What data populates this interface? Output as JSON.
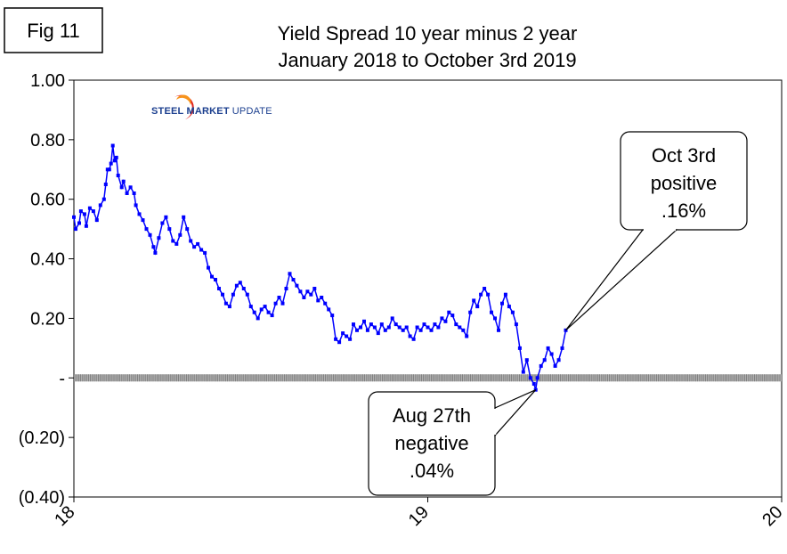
{
  "fig_label": "Fig 11",
  "logo": {
    "text": "STEEL MARKET UPDATE",
    "text_strong": "STEEL MARKET",
    "text_light": "UPDATE"
  },
  "chart_data": {
    "type": "line",
    "title": "Yield Spread 10 year minus 2 year",
    "subtitle": "January 2018 to October 3rd 2019",
    "xlabel": "",
    "ylabel": "",
    "x_ticks": [
      {
        "value": 18,
        "label": "18"
      },
      {
        "value": 19,
        "label": "19"
      },
      {
        "value": 20,
        "label": "20"
      }
    ],
    "xlim": [
      18,
      20
    ],
    "y_ticks": [
      {
        "value": 1.0,
        "label": "1.00"
      },
      {
        "value": 0.8,
        "label": "0.80"
      },
      {
        "value": 0.6,
        "label": "0.60"
      },
      {
        "value": 0.4,
        "label": "0.40"
      },
      {
        "value": 0.2,
        "label": "0.20"
      },
      {
        "value": 0.0,
        "label": "-"
      },
      {
        "value": -0.2,
        "label": "(0.20)"
      },
      {
        "value": -0.4,
        "label": "(0.40)"
      }
    ],
    "ylim": [
      -0.4,
      1.0
    ],
    "grid": false,
    "series": [
      {
        "name": "",
        "color": "#0000ff",
        "points": [
          [
            18.0,
            0.54
          ],
          [
            18.005,
            0.5
          ],
          [
            18.015,
            0.52
          ],
          [
            18.02,
            0.56
          ],
          [
            18.03,
            0.55
          ],
          [
            18.035,
            0.51
          ],
          [
            18.045,
            0.57
          ],
          [
            18.055,
            0.56
          ],
          [
            18.065,
            0.53
          ],
          [
            18.075,
            0.58
          ],
          [
            18.085,
            0.6
          ],
          [
            18.09,
            0.65
          ],
          [
            18.095,
            0.7
          ],
          [
            18.1,
            0.7
          ],
          [
            18.105,
            0.72
          ],
          [
            18.11,
            0.78
          ],
          [
            18.115,
            0.73
          ],
          [
            18.12,
            0.74
          ],
          [
            18.125,
            0.68
          ],
          [
            18.135,
            0.64
          ],
          [
            18.14,
            0.66
          ],
          [
            18.15,
            0.62
          ],
          [
            18.16,
            0.64
          ],
          [
            18.17,
            0.62
          ],
          [
            18.175,
            0.58
          ],
          [
            18.185,
            0.55
          ],
          [
            18.195,
            0.53
          ],
          [
            18.205,
            0.5
          ],
          [
            18.215,
            0.48
          ],
          [
            18.225,
            0.44
          ],
          [
            18.23,
            0.42
          ],
          [
            18.24,
            0.47
          ],
          [
            18.25,
            0.52
          ],
          [
            18.26,
            0.54
          ],
          [
            18.27,
            0.5
          ],
          [
            18.28,
            0.46
          ],
          [
            18.29,
            0.45
          ],
          [
            18.3,
            0.48
          ],
          [
            18.31,
            0.54
          ],
          [
            18.32,
            0.5
          ],
          [
            18.33,
            0.46
          ],
          [
            18.34,
            0.44
          ],
          [
            18.35,
            0.45
          ],
          [
            18.36,
            0.43
          ],
          [
            18.37,
            0.42
          ],
          [
            18.38,
            0.37
          ],
          [
            18.39,
            0.34
          ],
          [
            18.4,
            0.33
          ],
          [
            18.41,
            0.3
          ],
          [
            18.42,
            0.28
          ],
          [
            18.43,
            0.25
          ],
          [
            18.44,
            0.24
          ],
          [
            18.45,
            0.28
          ],
          [
            18.46,
            0.31
          ],
          [
            18.47,
            0.32
          ],
          [
            18.48,
            0.3
          ],
          [
            18.49,
            0.28
          ],
          [
            18.5,
            0.24
          ],
          [
            18.51,
            0.22
          ],
          [
            18.52,
            0.2
          ],
          [
            18.53,
            0.23
          ],
          [
            18.54,
            0.24
          ],
          [
            18.55,
            0.22
          ],
          [
            18.56,
            0.21
          ],
          [
            18.57,
            0.25
          ],
          [
            18.58,
            0.27
          ],
          [
            18.59,
            0.25
          ],
          [
            18.6,
            0.3
          ],
          [
            18.61,
            0.35
          ],
          [
            18.62,
            0.33
          ],
          [
            18.63,
            0.31
          ],
          [
            18.64,
            0.29
          ],
          [
            18.65,
            0.27
          ],
          [
            18.66,
            0.29
          ],
          [
            18.67,
            0.28
          ],
          [
            18.68,
            0.3
          ],
          [
            18.69,
            0.26
          ],
          [
            18.7,
            0.27
          ],
          [
            18.71,
            0.25
          ],
          [
            18.72,
            0.23
          ],
          [
            18.73,
            0.21
          ],
          [
            18.74,
            0.13
          ],
          [
            18.75,
            0.12
          ],
          [
            18.76,
            0.15
          ],
          [
            18.77,
            0.14
          ],
          [
            18.78,
            0.13
          ],
          [
            18.79,
            0.18
          ],
          [
            18.8,
            0.16
          ],
          [
            18.81,
            0.17
          ],
          [
            18.82,
            0.19
          ],
          [
            18.83,
            0.16
          ],
          [
            18.84,
            0.18
          ],
          [
            18.85,
            0.17
          ],
          [
            18.86,
            0.15
          ],
          [
            18.87,
            0.18
          ],
          [
            18.88,
            0.16
          ],
          [
            18.89,
            0.17
          ],
          [
            18.9,
            0.2
          ],
          [
            18.91,
            0.18
          ],
          [
            18.92,
            0.17
          ],
          [
            18.93,
            0.16
          ],
          [
            18.94,
            0.17
          ],
          [
            18.95,
            0.14
          ],
          [
            18.96,
            0.13
          ],
          [
            18.97,
            0.17
          ],
          [
            18.98,
            0.16
          ],
          [
            18.99,
            0.18
          ],
          [
            19.0,
            0.17
          ],
          [
            19.01,
            0.16
          ],
          [
            19.02,
            0.18
          ],
          [
            19.03,
            0.17
          ],
          [
            19.04,
            0.2
          ],
          [
            19.05,
            0.19
          ],
          [
            19.06,
            0.22
          ],
          [
            19.07,
            0.21
          ],
          [
            19.08,
            0.18
          ],
          [
            19.09,
            0.17
          ],
          [
            19.1,
            0.16
          ],
          [
            19.11,
            0.14
          ],
          [
            19.12,
            0.22
          ],
          [
            19.13,
            0.26
          ],
          [
            19.14,
            0.24
          ],
          [
            19.15,
            0.28
          ],
          [
            19.16,
            0.3
          ],
          [
            19.17,
            0.28
          ],
          [
            19.18,
            0.22
          ],
          [
            19.19,
            0.2
          ],
          [
            19.2,
            0.16
          ],
          [
            19.21,
            0.25
          ],
          [
            19.22,
            0.28
          ],
          [
            19.23,
            0.24
          ],
          [
            19.24,
            0.22
          ],
          [
            19.25,
            0.18
          ],
          [
            19.26,
            0.1
          ],
          [
            19.27,
            0.02
          ],
          [
            19.28,
            0.06
          ],
          [
            19.29,
            0.0
          ],
          [
            19.3,
            -0.02
          ],
          [
            19.305,
            -0.04
          ],
          [
            19.31,
            0.0
          ],
          [
            19.32,
            0.04
          ],
          [
            19.33,
            0.06
          ],
          [
            19.34,
            0.1
          ],
          [
            19.35,
            0.08
          ],
          [
            19.36,
            0.04
          ],
          [
            19.37,
            0.06
          ],
          [
            19.38,
            0.1
          ],
          [
            19.39,
            0.16
          ]
        ]
      }
    ],
    "annotations": [
      {
        "lines": [
          "Oct 3rd",
          "positive",
          ".16%"
        ],
        "target": [
          19.39,
          0.16
        ]
      },
      {
        "lines": [
          "Aug 27th",
          "negative",
          ".04%"
        ],
        "target": [
          19.305,
          -0.04
        ]
      }
    ]
  }
}
